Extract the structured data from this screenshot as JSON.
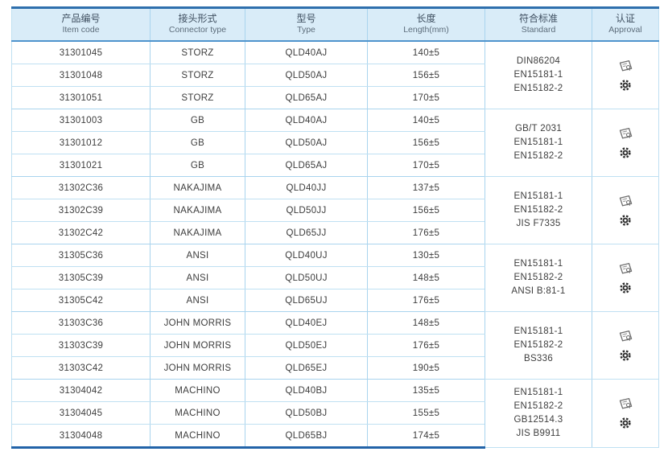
{
  "table": {
    "headers": {
      "item_code": {
        "zh": "产品编号",
        "en": "Item code"
      },
      "connector": {
        "zh": "接头形式",
        "en": "Connector type"
      },
      "type": {
        "zh": "型号",
        "en": "Type"
      },
      "length": {
        "zh": "长度",
        "en": "Length(mm)"
      },
      "standard": {
        "zh": "符合标准",
        "en": "Standard"
      },
      "approval": {
        "zh": "认证",
        "en": "Approval"
      }
    },
    "groups": [
      {
        "rows": [
          {
            "item_code": "31301045",
            "connector": "STORZ",
            "type": "QLD40AJ",
            "length": "140±5"
          },
          {
            "item_code": "31301048",
            "connector": "STORZ",
            "type": "QLD50AJ",
            "length": "156±5"
          },
          {
            "item_code": "31301051",
            "connector": "STORZ",
            "type": "QLD65AJ",
            "length": "170±5"
          }
        ],
        "standards": [
          "DIN86204",
          "EN15181-1",
          "EN15182-2"
        ],
        "approval_icons": [
          "certificate-icon",
          "gear-seal-icon"
        ]
      },
      {
        "rows": [
          {
            "item_code": "31301003",
            "connector": "GB",
            "type": "QLD40AJ",
            "length": "140±5"
          },
          {
            "item_code": "31301012",
            "connector": "GB",
            "type": "QLD50AJ",
            "length": "156±5"
          },
          {
            "item_code": "31301021",
            "connector": "GB",
            "type": "QLD65AJ",
            "length": "170±5"
          }
        ],
        "standards": [
          "GB/T 2031",
          "EN15181-1",
          "EN15182-2"
        ],
        "approval_icons": [
          "certificate-icon",
          "gear-seal-icon"
        ]
      },
      {
        "rows": [
          {
            "item_code": "31302C36",
            "connector": "NAKAJIMA",
            "type": "QLD40JJ",
            "length": "137±5"
          },
          {
            "item_code": "31302C39",
            "connector": "NAKAJIMA",
            "type": "QLD50JJ",
            "length": "156±5"
          },
          {
            "item_code": "31302C42",
            "connector": "NAKAJIMA",
            "type": "QLD65JJ",
            "length": "176±5"
          }
        ],
        "standards": [
          "EN15181-1",
          "EN15182-2",
          "JIS F7335"
        ],
        "approval_icons": [
          "certificate-icon",
          "gear-seal-icon"
        ]
      },
      {
        "rows": [
          {
            "item_code": "31305C36",
            "connector": "ANSI",
            "type": "QLD40UJ",
            "length": "130±5"
          },
          {
            "item_code": "31305C39",
            "connector": "ANSI",
            "type": "QLD50UJ",
            "length": "148±5"
          },
          {
            "item_code": "31305C42",
            "connector": "ANSI",
            "type": "QLD65UJ",
            "length": "176±5"
          }
        ],
        "standards": [
          "EN15181-1",
          "EN15182-2",
          "ANSI B:81-1"
        ],
        "approval_icons": [
          "certificate-icon",
          "gear-seal-icon"
        ]
      },
      {
        "rows": [
          {
            "item_code": "31303C36",
            "connector": "JOHN MORRIS",
            "type": "QLD40EJ",
            "length": "148±5"
          },
          {
            "item_code": "31303C39",
            "connector": "JOHN MORRIS",
            "type": "QLD50EJ",
            "length": "176±5"
          },
          {
            "item_code": "31303C42",
            "connector": "JOHN MORRIS",
            "type": "QLD65EJ",
            "length": "190±5"
          }
        ],
        "standards": [
          "EN15181-1",
          "EN15182-2",
          "BS336"
        ],
        "approval_icons": [
          "certificate-icon",
          "gear-seal-icon"
        ]
      },
      {
        "rows": [
          {
            "item_code": "31304042",
            "connector": "MACHINO",
            "type": "QLD40BJ",
            "length": "135±5"
          },
          {
            "item_code": "31304045",
            "connector": "MACHINO",
            "type": "QLD50BJ",
            "length": "155±5"
          },
          {
            "item_code": "31304048",
            "connector": "MACHINO",
            "type": "QLD65BJ",
            "length": "174±5"
          }
        ],
        "standards": [
          "EN15181-1",
          "EN15182-2",
          "GB12514.3",
          "JIS B9911"
        ],
        "approval_icons": [
          "certificate-icon",
          "gear-seal-icon"
        ]
      }
    ],
    "colors": {
      "header_bg": "#d9ecf8",
      "top_border": "#2e6fad",
      "bottom_border": "#2263a8",
      "grid_line": "#a9d4ee",
      "row_line": "#bfe0f2",
      "text": "#3d3d3d"
    }
  }
}
